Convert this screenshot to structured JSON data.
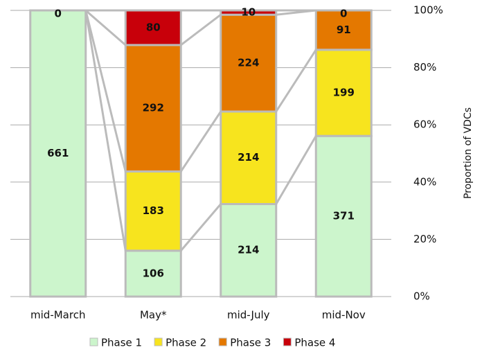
{
  "chart_data": {
    "type": "stacked_bar_100",
    "normalize": true,
    "y_axis_label": "Proportion of VDCs",
    "categories": [
      "mid-March",
      "May*",
      "mid-July",
      "mid-Nov"
    ],
    "series": [
      {
        "name": "Phase 1",
        "color": "#ccf5cc",
        "values": [
          661,
          106,
          214,
          371
        ]
      },
      {
        "name": "Phase 2",
        "color": "#f7e41e",
        "values": [
          null,
          183,
          214,
          199
        ]
      },
      {
        "name": "Phase 3",
        "color": "#e47800",
        "values": [
          null,
          292,
          224,
          91
        ]
      },
      {
        "name": "Phase 4",
        "color": "#c8000a",
        "values": [
          0,
          80,
          10,
          0
        ]
      }
    ],
    "ylim": [
      0,
      100
    ],
    "yticks": [
      {
        "value": 0,
        "label": "0%"
      },
      {
        "value": 20,
        "label": "20%"
      },
      {
        "value": 40,
        "label": "40%"
      },
      {
        "value": 60,
        "label": "60%"
      },
      {
        "value": 80,
        "label": "80%"
      },
      {
        "value": 100,
        "label": "100%"
      }
    ],
    "y_axis_side": "right",
    "grid": true,
    "legend": "bottom"
  }
}
